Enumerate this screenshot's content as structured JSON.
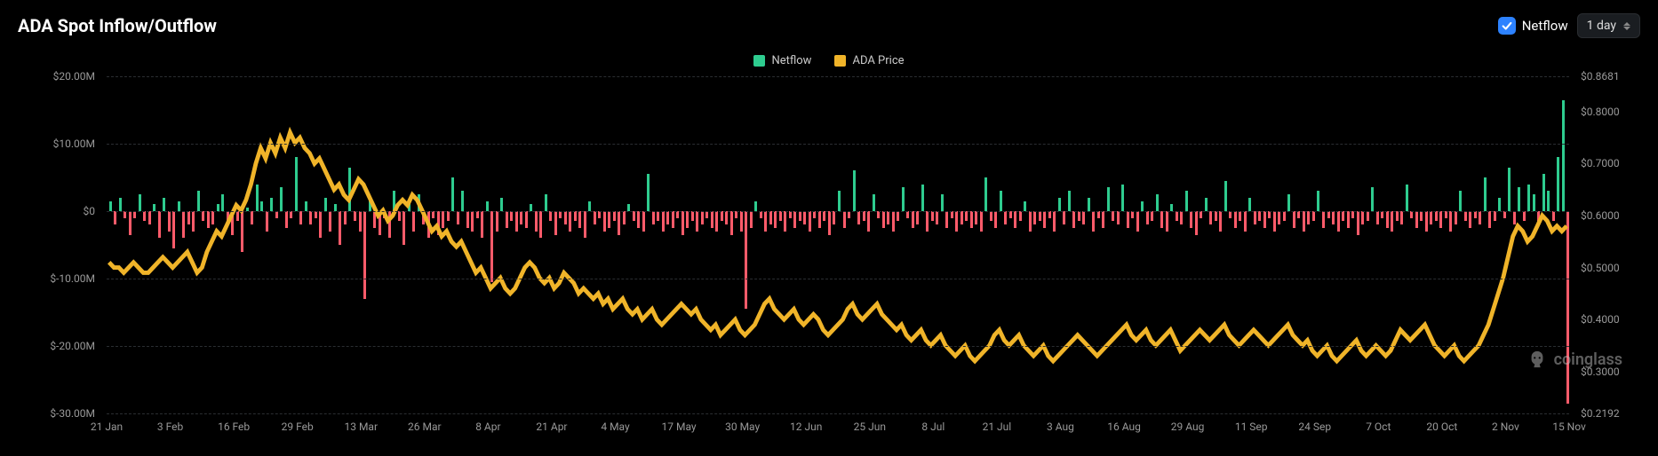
{
  "title": "ADA Spot Inflow/Outflow",
  "controls": {
    "checkbox_label": "Netflow",
    "checkbox_checked": true,
    "dropdown_value": "1 day"
  },
  "legend": [
    {
      "label": "Netflow",
      "color": "#2ecc8f"
    },
    {
      "label": "ADA Price",
      "color": "#f0b429"
    }
  ],
  "watermark": "coinglass",
  "chart": {
    "type": "bar+line",
    "background": "#000000",
    "grid_color": "#2a2d31",
    "left_axis": {
      "label_color": "#999999",
      "min": -30,
      "max": 20,
      "ticks": [
        {
          "v": 20,
          "label": "$20.00M"
        },
        {
          "v": 10,
          "label": "$10.00M"
        },
        {
          "v": 0,
          "label": "$0"
        },
        {
          "v": -10,
          "label": "$-10.00M"
        },
        {
          "v": -20,
          "label": "$-20.00M"
        },
        {
          "v": -30,
          "label": "$-30.00M"
        }
      ]
    },
    "right_axis": {
      "label_color": "#999999",
      "min": 0.2192,
      "max": 0.8681,
      "ticks": [
        {
          "v": 0.8681,
          "label": "$0.8681"
        },
        {
          "v": 0.8,
          "label": "$0.8000"
        },
        {
          "v": 0.7,
          "label": "$0.7000"
        },
        {
          "v": 0.6,
          "label": "$0.6000"
        },
        {
          "v": 0.5,
          "label": "$0.5000"
        },
        {
          "v": 0.4,
          "label": "$0.4000"
        },
        {
          "v": 0.3,
          "label": "$0.3000"
        },
        {
          "v": 0.2192,
          "label": "$0.2192"
        }
      ]
    },
    "x_labels": [
      "21 Jan",
      "3 Feb",
      "16 Feb",
      "29 Feb",
      "13 Mar",
      "26 Mar",
      "8 Apr",
      "21 Apr",
      "4 May",
      "17 May",
      "30 May",
      "12 Jun",
      "25 Jun",
      "8 Jul",
      "21 Jul",
      "3 Aug",
      "16 Aug",
      "29 Aug",
      "11 Sep",
      "24 Sep",
      "7 Oct",
      "20 Oct",
      "2 Nov",
      "15 Nov"
    ],
    "bar_pos_color": "#2ecc8f",
    "bar_neg_color": "#ff5b6a",
    "line_color": "#f0b429",
    "line_width": 1.6,
    "netflow": [
      1.5,
      -2.0,
      2.0,
      -1.0,
      -3.5,
      -1.0,
      2.5,
      -1.5,
      -2.0,
      1.0,
      -4.0,
      2.0,
      -3.0,
      -5.5,
      1.5,
      -4.0,
      -2.0,
      -3.0,
      3.0,
      -1.5,
      -2.5,
      -2.0,
      1.0,
      2.5,
      -2.0,
      -3.5,
      -1.5,
      -6.0,
      0.5,
      -2.0,
      4.0,
      1.5,
      -3.0,
      2.0,
      -1.0,
      3.5,
      -2.5,
      -1.0,
      8.0,
      -2.0,
      1.5,
      -2.0,
      -1.0,
      -4.0,
      2.0,
      -3.0,
      1.0,
      -5.0,
      -2.0,
      6.5,
      -1.5,
      -3.0,
      -13.0,
      2.0,
      -2.5,
      -3.5,
      -1.0,
      -4.0,
      3.0,
      -1.5,
      -5.0,
      1.5,
      -3.0,
      2.5,
      -2.0,
      -4.0,
      -1.0,
      -3.5,
      -2.5,
      -1.5,
      5.0,
      -2.0,
      3.0,
      -2.5,
      -3.0,
      -1.0,
      -4.0,
      1.5,
      -10.5,
      -3.0,
      2.0,
      -2.5,
      -1.5,
      -3.0,
      -2.0,
      -2.5,
      1.0,
      -3.0,
      -4.0,
      2.5,
      -1.5,
      -3.5,
      -1.0,
      -2.0,
      -3.0,
      -1.5,
      -2.5,
      -4.0,
      1.5,
      -2.0,
      -1.0,
      -3.0,
      -2.5,
      -1.5,
      -3.5,
      -2.0,
      1.0,
      -1.5,
      -2.5,
      -3.0,
      5.5,
      -2.0,
      -1.5,
      -3.0,
      -2.0,
      -2.5,
      -1.0,
      -3.5,
      -2.5,
      -1.5,
      -3.0,
      -2.0,
      -1.0,
      -2.5,
      -3.0,
      -1.5,
      -2.0,
      -3.5,
      -1.0,
      -3.0,
      -14.5,
      -2.5,
      1.5,
      -1.0,
      -3.0,
      -2.0,
      -2.5,
      -1.5,
      -3.0,
      -1.0,
      -2.5,
      -1.5,
      -2.0,
      -3.0,
      -1.0,
      -2.5,
      -1.5,
      -3.5,
      -2.0,
      3.0,
      -2.5,
      -1.0,
      6.0,
      -2.0,
      -1.5,
      -3.0,
      2.5,
      -1.0,
      -2.5,
      -2.0,
      -3.0,
      -1.5,
      3.5,
      -1.0,
      -2.5,
      -2.0,
      4.0,
      -3.0,
      -1.5,
      -2.0,
      2.5,
      -2.5,
      -1.0,
      -3.0,
      -2.0,
      -1.5,
      -2.5,
      -2.0,
      -3.0,
      5.0,
      -1.5,
      -2.5,
      3.0,
      -2.0,
      -1.0,
      -2.5,
      -1.5,
      1.5,
      -3.0,
      -2.0,
      -1.5,
      -2.5,
      -1.0,
      -3.0,
      2.0,
      -2.0,
      3.0,
      -2.5,
      -1.5,
      -2.0,
      2.0,
      -3.0,
      -1.0,
      -2.5,
      3.5,
      -1.5,
      -2.0,
      4.0,
      -2.5,
      -1.0,
      -3.0,
      1.5,
      -2.0,
      -1.5,
      2.5,
      -2.5,
      -3.0,
      1.0,
      -1.5,
      -2.0,
      3.0,
      -2.5,
      -3.5,
      -1.0,
      2.0,
      -2.0,
      -1.5,
      -3.0,
      4.5,
      -1.0,
      -2.5,
      -1.5,
      -3.0,
      2.0,
      -2.0,
      -1.5,
      -2.5,
      -1.0,
      -3.0,
      -2.0,
      -1.5,
      2.5,
      -2.5,
      -1.0,
      -3.0,
      -2.0,
      -1.5,
      3.0,
      -2.5,
      -1.0,
      -2.0,
      -3.0,
      -1.5,
      -2.5,
      -1.0,
      -3.5,
      -2.0,
      -1.5,
      3.5,
      -2.0,
      -1.0,
      -2.5,
      -3.0,
      -1.5,
      -2.0,
      4.0,
      -1.0,
      -2.5,
      -1.5,
      -3.0,
      -2.0,
      -1.5,
      -2.5,
      -1.0,
      -3.0,
      -2.0,
      3.0,
      -1.5,
      -2.5,
      -1.0,
      -2.0,
      5.0,
      -2.5,
      -1.5,
      2.0,
      -1.0,
      6.5,
      -2.0,
      3.5,
      -1.5,
      4.0,
      2.5,
      -2.0,
      5.5,
      3.0,
      -1.5,
      8.0,
      16.5,
      -28.5
    ],
    "price": [
      0.51,
      0.5,
      0.5,
      0.49,
      0.5,
      0.51,
      0.5,
      0.49,
      0.49,
      0.5,
      0.51,
      0.52,
      0.51,
      0.5,
      0.51,
      0.52,
      0.53,
      0.51,
      0.49,
      0.5,
      0.53,
      0.55,
      0.57,
      0.56,
      0.58,
      0.6,
      0.62,
      0.61,
      0.63,
      0.66,
      0.7,
      0.73,
      0.71,
      0.74,
      0.72,
      0.75,
      0.73,
      0.76,
      0.74,
      0.75,
      0.73,
      0.72,
      0.7,
      0.71,
      0.69,
      0.67,
      0.65,
      0.66,
      0.64,
      0.63,
      0.65,
      0.67,
      0.66,
      0.64,
      0.62,
      0.6,
      0.61,
      0.59,
      0.6,
      0.62,
      0.63,
      0.62,
      0.64,
      0.63,
      0.61,
      0.59,
      0.57,
      0.58,
      0.56,
      0.57,
      0.55,
      0.54,
      0.55,
      0.53,
      0.51,
      0.49,
      0.5,
      0.48,
      0.46,
      0.47,
      0.48,
      0.46,
      0.45,
      0.46,
      0.48,
      0.5,
      0.51,
      0.5,
      0.48,
      0.47,
      0.48,
      0.46,
      0.47,
      0.49,
      0.48,
      0.47,
      0.45,
      0.46,
      0.45,
      0.44,
      0.45,
      0.43,
      0.44,
      0.42,
      0.43,
      0.44,
      0.42,
      0.41,
      0.42,
      0.4,
      0.41,
      0.42,
      0.4,
      0.39,
      0.4,
      0.41,
      0.42,
      0.43,
      0.42,
      0.41,
      0.42,
      0.4,
      0.39,
      0.38,
      0.39,
      0.37,
      0.38,
      0.39,
      0.4,
      0.38,
      0.37,
      0.38,
      0.39,
      0.41,
      0.43,
      0.44,
      0.42,
      0.41,
      0.4,
      0.41,
      0.42,
      0.4,
      0.39,
      0.4,
      0.41,
      0.4,
      0.38,
      0.37,
      0.38,
      0.39,
      0.4,
      0.42,
      0.43,
      0.41,
      0.4,
      0.41,
      0.42,
      0.43,
      0.41,
      0.4,
      0.39,
      0.38,
      0.39,
      0.37,
      0.36,
      0.37,
      0.38,
      0.36,
      0.35,
      0.36,
      0.37,
      0.35,
      0.34,
      0.33,
      0.34,
      0.35,
      0.33,
      0.32,
      0.33,
      0.34,
      0.35,
      0.37,
      0.38,
      0.36,
      0.35,
      0.36,
      0.37,
      0.35,
      0.34,
      0.33,
      0.34,
      0.35,
      0.33,
      0.32,
      0.33,
      0.34,
      0.35,
      0.36,
      0.37,
      0.36,
      0.35,
      0.34,
      0.33,
      0.34,
      0.35,
      0.36,
      0.37,
      0.38,
      0.39,
      0.37,
      0.36,
      0.37,
      0.38,
      0.36,
      0.35,
      0.36,
      0.37,
      0.38,
      0.36,
      0.34,
      0.35,
      0.36,
      0.37,
      0.38,
      0.37,
      0.36,
      0.37,
      0.38,
      0.39,
      0.37,
      0.36,
      0.35,
      0.36,
      0.37,
      0.38,
      0.37,
      0.36,
      0.35,
      0.36,
      0.37,
      0.38,
      0.39,
      0.37,
      0.36,
      0.35,
      0.36,
      0.34,
      0.33,
      0.34,
      0.35,
      0.33,
      0.32,
      0.33,
      0.34,
      0.35,
      0.36,
      0.34,
      0.33,
      0.34,
      0.35,
      0.34,
      0.33,
      0.34,
      0.36,
      0.38,
      0.37,
      0.36,
      0.37,
      0.38,
      0.39,
      0.37,
      0.35,
      0.34,
      0.33,
      0.34,
      0.35,
      0.33,
      0.32,
      0.33,
      0.34,
      0.35,
      0.37,
      0.39,
      0.42,
      0.45,
      0.48,
      0.52,
      0.56,
      0.58,
      0.57,
      0.55,
      0.56,
      0.58,
      0.6,
      0.59,
      0.57,
      0.58,
      0.57,
      0.58
    ]
  }
}
